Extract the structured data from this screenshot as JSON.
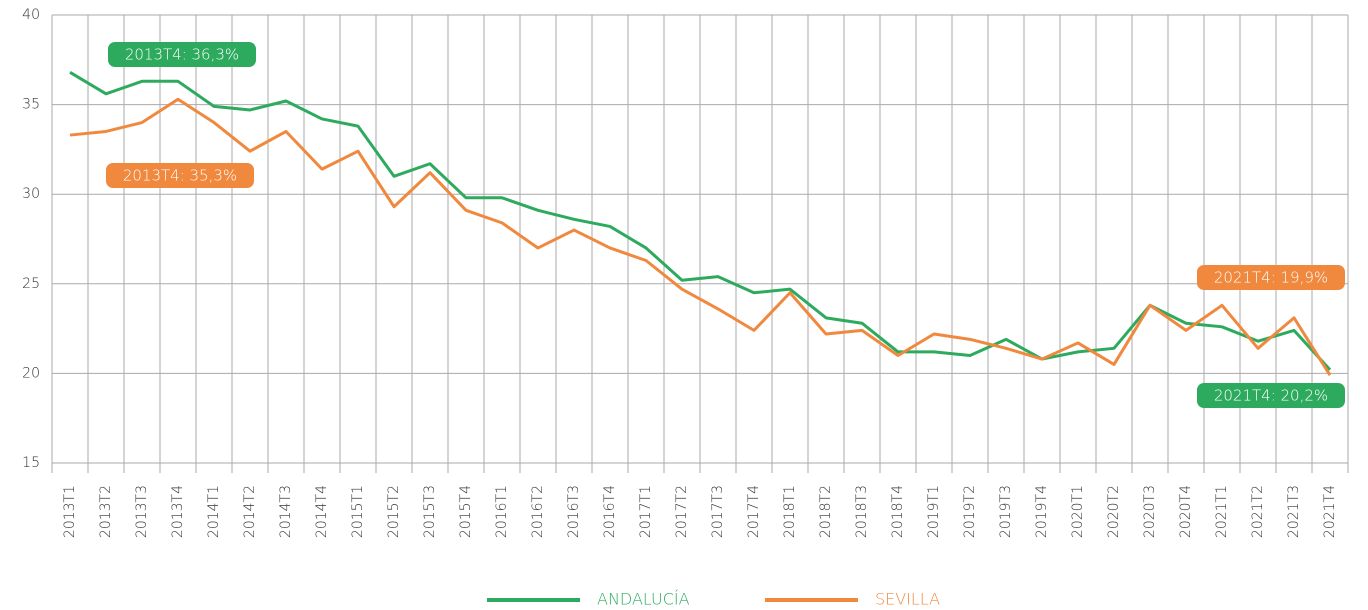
{
  "chart_data": {
    "type": "line",
    "categories": [
      "2013T1",
      "2013T2",
      "2013T3",
      "2013T4",
      "2014T1",
      "2014T2",
      "2014T3",
      "2014T4",
      "2015T1",
      "2015T2",
      "2015T3",
      "2015T4",
      "2016T1",
      "2016T2",
      "2016T3",
      "2016T4",
      "2017T1",
      "2017T2",
      "2017T3",
      "2017T4",
      "2018T1",
      "2018T2",
      "2018T3",
      "2018T4",
      "2019T1",
      "2019T2",
      "2019T3",
      "2019T4",
      "2020T1",
      "2020T2",
      "2020T3",
      "2020T4",
      "2021T1",
      "2021T2",
      "2021T3",
      "2021T4"
    ],
    "series": [
      {
        "name": "ANDALUCÍA",
        "color": "#2eaa5f",
        "values": [
          36.8,
          35.6,
          36.3,
          36.3,
          34.9,
          34.7,
          35.2,
          34.2,
          33.8,
          31.0,
          31.7,
          29.8,
          29.8,
          29.1,
          28.6,
          28.2,
          27.0,
          25.2,
          25.4,
          24.5,
          24.7,
          23.1,
          22.8,
          21.2,
          21.2,
          21.0,
          21.9,
          20.8,
          21.2,
          21.4,
          23.8,
          22.8,
          22.6,
          21.8,
          22.4,
          20.2
        ]
      },
      {
        "name": "SEVILLA",
        "color": "#f0883e",
        "values": [
          33.3,
          33.5,
          34.0,
          35.3,
          34.0,
          32.4,
          33.5,
          31.4,
          32.4,
          29.3,
          31.2,
          29.1,
          28.4,
          27.0,
          28.0,
          27.0,
          26.3,
          24.7,
          23.6,
          22.4,
          24.5,
          22.2,
          22.4,
          21.0,
          22.2,
          21.9,
          21.4,
          20.8,
          21.7,
          20.5,
          23.8,
          22.4,
          23.8,
          21.4,
          23.1,
          19.9
        ]
      }
    ],
    "annotations": [
      "2013T4: 36,3%",
      "2013T4: 35,3%",
      "2021T4: 19,9%",
      "2021T4: 20,2%"
    ],
    "ylim": [
      15,
      40
    ],
    "yticks": [
      15,
      20,
      25,
      30,
      35,
      40
    ],
    "grid": true,
    "legend": "bottom"
  }
}
